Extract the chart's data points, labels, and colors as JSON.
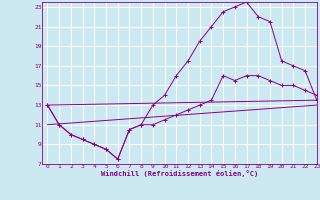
{
  "xlabel": "Windchill (Refroidissement éolien,°C)",
  "bg_color": "#cce8f0",
  "line_color": "#880088",
  "grid_color": "#ffffff",
  "xlim": [
    -0.5,
    23
  ],
  "ylim": [
    7,
    23.5
  ],
  "xticks": [
    0,
    1,
    2,
    3,
    4,
    5,
    6,
    7,
    8,
    9,
    10,
    11,
    12,
    13,
    14,
    15,
    16,
    17,
    18,
    19,
    20,
    21,
    22,
    23
  ],
  "yticks": [
    7,
    9,
    11,
    13,
    15,
    17,
    19,
    21,
    23
  ],
  "line1_x": [
    0,
    1,
    2,
    3,
    4,
    5,
    6,
    7,
    8,
    9,
    10,
    11,
    12,
    13,
    14,
    15,
    16,
    17,
    18,
    19,
    20,
    21,
    22,
    23
  ],
  "line1_y": [
    13,
    11,
    10,
    9.5,
    9,
    8.5,
    7.5,
    10.5,
    11,
    13,
    14,
    16,
    17.5,
    19.5,
    21,
    22.5,
    23,
    23.5,
    22,
    21.5,
    17.5,
    17,
    16.5,
    13.5
  ],
  "line2_x": [
    0,
    1,
    2,
    3,
    4,
    5,
    6,
    7,
    8,
    9,
    10,
    11,
    12,
    13,
    14,
    15,
    16,
    17,
    18,
    19,
    20,
    21,
    22,
    23
  ],
  "line2_y": [
    13,
    11,
    10,
    9.5,
    9,
    8.5,
    7.5,
    10.5,
    11,
    11,
    11.5,
    12,
    12.5,
    13,
    13.5,
    16,
    15.5,
    16,
    16,
    15.5,
    15,
    15,
    14.5,
    14
  ],
  "line3_x": [
    0,
    23
  ],
  "line3_y": [
    13,
    13.5
  ],
  "line4_x": [
    0,
    23
  ],
  "line4_y": [
    11,
    13
  ]
}
